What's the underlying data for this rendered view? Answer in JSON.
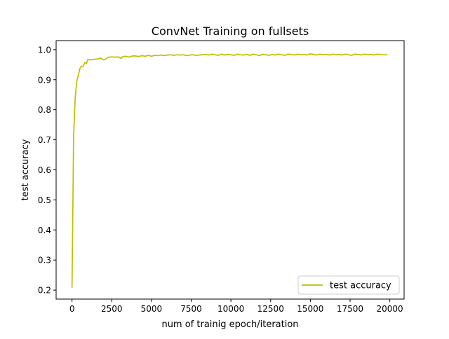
{
  "chart_data": {
    "type": "line",
    "title": "ConvNet Training on fullsets",
    "xlabel": "num of trainig epoch/iteration",
    "ylabel": "test accuracy",
    "xlim": [
      -1000,
      20900
    ],
    "ylim": [
      0.17,
      1.03
    ],
    "xticks": [
      0,
      2500,
      5000,
      7500,
      10000,
      12500,
      15000,
      17500,
      20000
    ],
    "xtick_labels": [
      "0",
      "2500",
      "5000",
      "7500",
      "10000",
      "12500",
      "15000",
      "17500",
      "20000"
    ],
    "yticks": [
      0.2,
      0.3,
      0.4,
      0.5,
      0.6,
      0.7,
      0.8,
      0.9,
      1.0
    ],
    "ytick_labels": [
      "0.2",
      "0.3",
      "0.4",
      "0.5",
      "0.6",
      "0.7",
      "0.8",
      "0.9",
      "1.0"
    ],
    "grid": false,
    "legend_position": "bottom-right",
    "series": [
      {
        "name": "test accuracy",
        "color": "#bfbf00",
        "x": [
          0,
          100,
          200,
          300,
          400,
          500,
          600,
          700,
          800,
          900,
          1000,
          1200,
          1400,
          1600,
          1800,
          2000,
          2100,
          2300,
          2500,
          2700,
          2900,
          3100,
          3200,
          3400,
          3600,
          3800,
          4000,
          4200,
          4400,
          4600,
          4800,
          5000,
          5200,
          5400,
          5600,
          5800,
          6000,
          6200,
          6400,
          6600,
          6800,
          7000,
          7200,
          7400,
          7600,
          7800,
          8000,
          8200,
          8400,
          8600,
          8800,
          9000,
          9200,
          9400,
          9600,
          9800,
          10000,
          10200,
          10400,
          10600,
          10800,
          11000,
          11200,
          11400,
          11600,
          11800,
          12000,
          12200,
          12400,
          12600,
          12800,
          13000,
          13200,
          13400,
          13600,
          13800,
          14000,
          14200,
          14400,
          14600,
          14800,
          15000,
          15200,
          15400,
          15600,
          15800,
          16000,
          16200,
          16400,
          16600,
          16800,
          17000,
          17200,
          17400,
          17600,
          17800,
          18000,
          18200,
          18400,
          18600,
          18800,
          19000,
          19200,
          19400,
          19600,
          19800
        ],
        "values": [
          0.21,
          0.71,
          0.84,
          0.895,
          0.915,
          0.938,
          0.945,
          0.944,
          0.957,
          0.954,
          0.967,
          0.966,
          0.968,
          0.969,
          0.972,
          0.966,
          0.968,
          0.975,
          0.976,
          0.975,
          0.976,
          0.971,
          0.977,
          0.978,
          0.975,
          0.979,
          0.979,
          0.977,
          0.98,
          0.978,
          0.981,
          0.978,
          0.981,
          0.98,
          0.982,
          0.98,
          0.982,
          0.983,
          0.981,
          0.983,
          0.982,
          0.983,
          0.98,
          0.982,
          0.983,
          0.981,
          0.982,
          0.983,
          0.984,
          0.982,
          0.985,
          0.983,
          0.981,
          0.985,
          0.982,
          0.984,
          0.983,
          0.981,
          0.985,
          0.983,
          0.982,
          0.984,
          0.981,
          0.985,
          0.983,
          0.98,
          0.985,
          0.983,
          0.981,
          0.984,
          0.982,
          0.985,
          0.983,
          0.981,
          0.985,
          0.984,
          0.982,
          0.985,
          0.983,
          0.984,
          0.982,
          0.986,
          0.984,
          0.982,
          0.985,
          0.983,
          0.984,
          0.982,
          0.985,
          0.983,
          0.984,
          0.982,
          0.985,
          0.983,
          0.981,
          0.985,
          0.984,
          0.982,
          0.985,
          0.983,
          0.984,
          0.982,
          0.985,
          0.984,
          0.983,
          0.983
        ]
      }
    ]
  }
}
